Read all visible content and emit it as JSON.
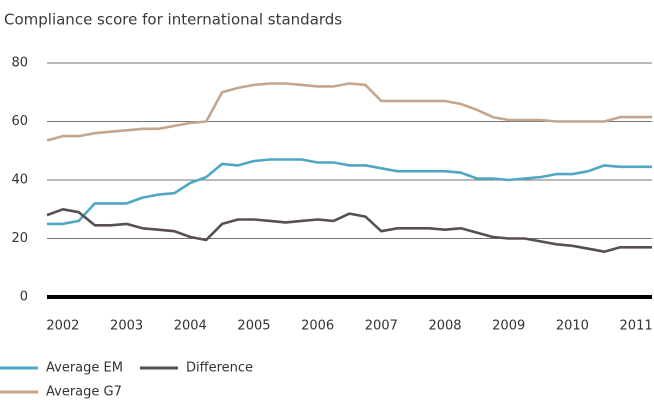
{
  "chart_data": {
    "type": "line",
    "title": "Compliance score for international standards",
    "x": [
      2001.75,
      2002,
      2002.25,
      2002.5,
      2002.75,
      2003,
      2003.25,
      2003.5,
      2003.75,
      2004,
      2004.25,
      2004.5,
      2004.75,
      2005,
      2005.25,
      2005.5,
      2005.75,
      2006,
      2006.25,
      2006.5,
      2006.75,
      2007,
      2007.25,
      2007.5,
      2007.75,
      2008,
      2008.25,
      2008.5,
      2008.75,
      2009,
      2009.25,
      2009.5,
      2009.75,
      2010,
      2010.25,
      2010.5,
      2010.75,
      2011,
      2011.25
    ],
    "series": [
      {
        "name": "Average EM",
        "color": "#4fa7c1",
        "values": [
          25,
          25,
          26,
          32,
          32,
          32,
          34,
          35,
          35.5,
          39,
          41,
          45.5,
          45,
          46.5,
          47,
          47,
          47,
          46,
          46,
          45,
          45,
          44,
          43,
          43,
          43,
          43,
          42.5,
          40.5,
          40.5,
          40,
          40.5,
          41,
          42,
          42,
          43,
          45,
          44.5,
          44.5,
          44.5
        ]
      },
      {
        "name": "Average G7",
        "color": "#c5a68d",
        "values": [
          53.5,
          55,
          55,
          56,
          56.5,
          57,
          57.5,
          57.5,
          58.5,
          59.5,
          60,
          70,
          71.5,
          72.5,
          73,
          73,
          72.5,
          72,
          72,
          73,
          72.5,
          67,
          67,
          67,
          67,
          67,
          66,
          64,
          61.5,
          60.5,
          60.5,
          60.5,
          60,
          60,
          60,
          60,
          61.5,
          61.5,
          61.5
        ]
      },
      {
        "name": "Difference",
        "color": "#58504f",
        "values": [
          28,
          30,
          29,
          24.5,
          24.5,
          25,
          23.5,
          23,
          22.5,
          20.5,
          19.5,
          25,
          26.5,
          26.5,
          26,
          25.5,
          26,
          26.5,
          26,
          28.5,
          27.5,
          22.5,
          23.5,
          23.5,
          23.5,
          23,
          23.5,
          22,
          20.5,
          20,
          20,
          19,
          18,
          17.5,
          16.5,
          15.5,
          17,
          17,
          17
        ]
      }
    ],
    "xlim": [
      2001.75,
      2011.25
    ],
    "xticks": [
      2002,
      2003,
      2004,
      2005,
      2006,
      2007,
      2008,
      2009,
      2010,
      2011
    ],
    "ylim": [
      0,
      80
    ],
    "yticks": [
      0,
      20,
      40,
      60,
      80
    ],
    "grid": true,
    "legend": "bottom"
  }
}
